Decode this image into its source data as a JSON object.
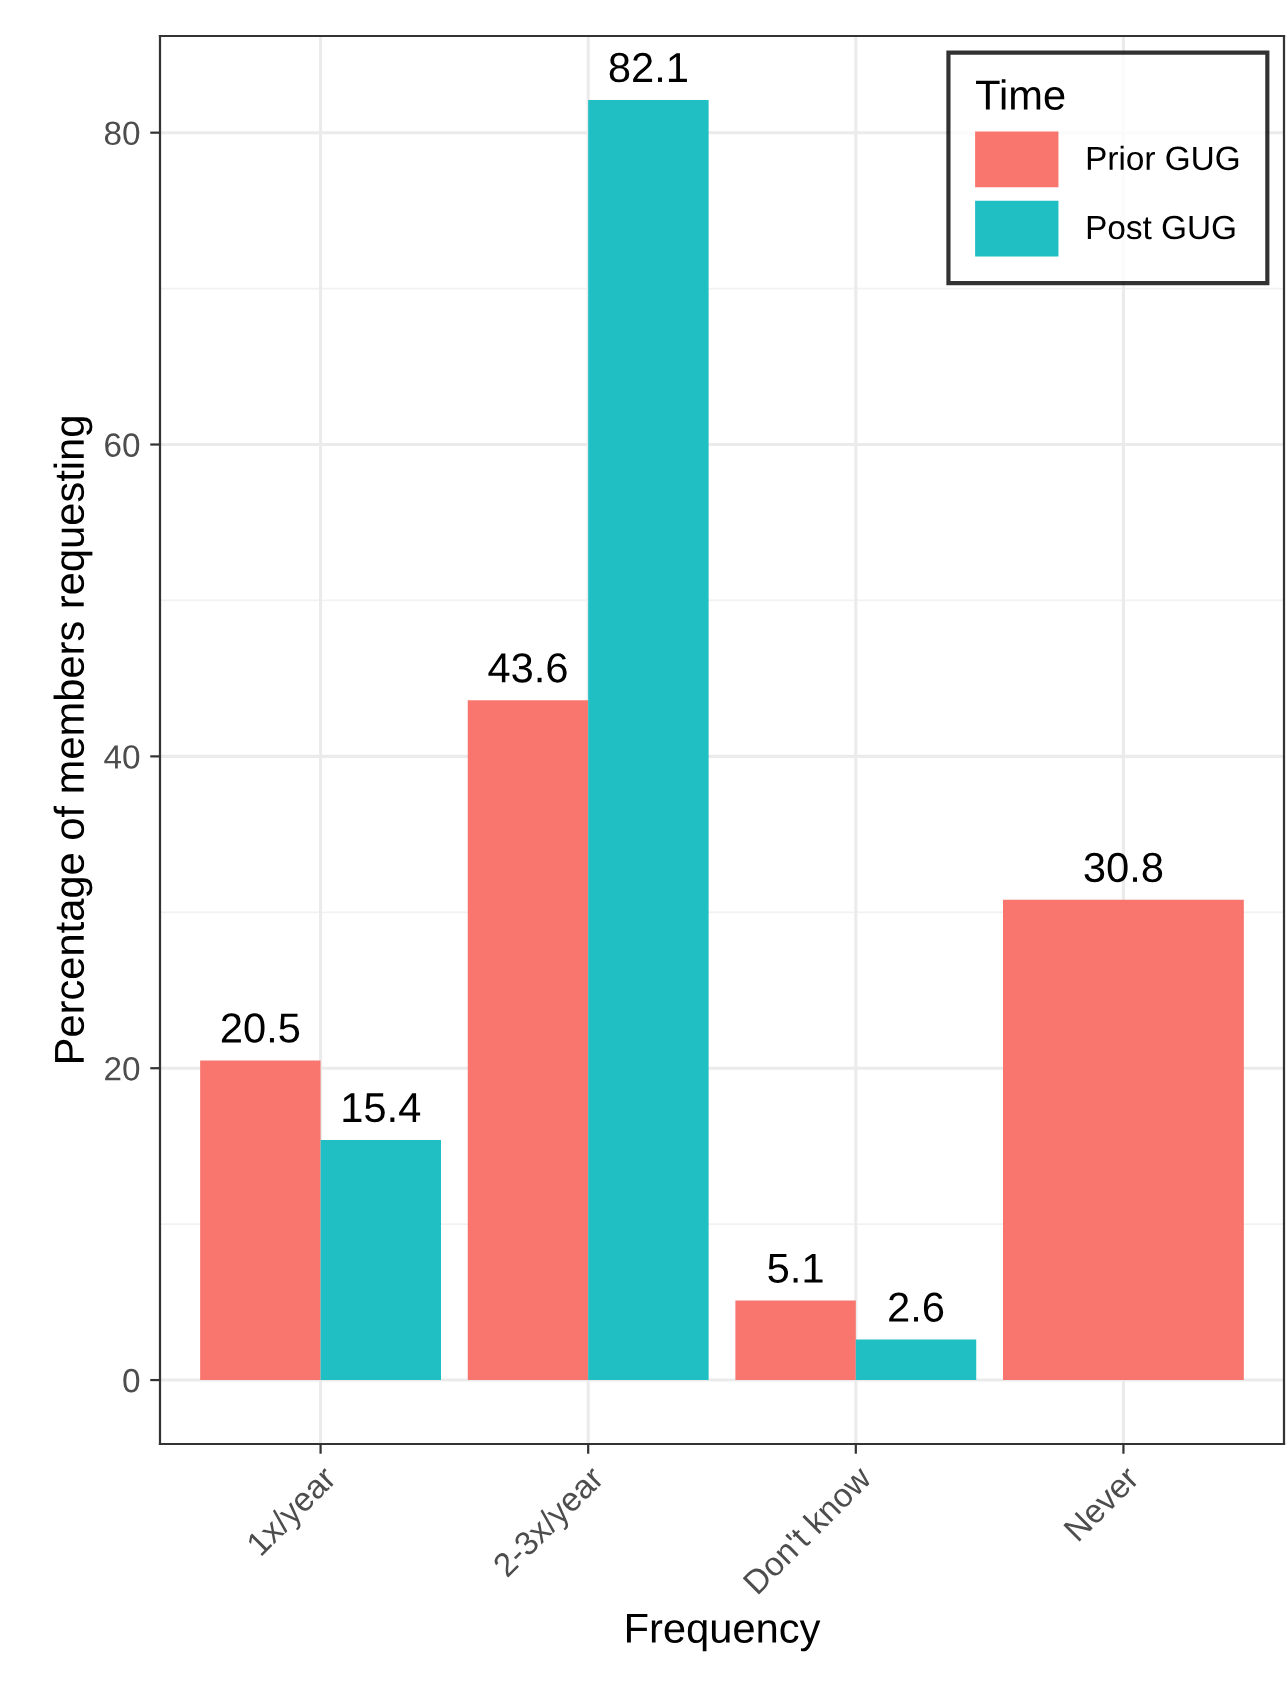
{
  "chart_data": {
    "type": "bar",
    "xlabel": "Frequency",
    "ylabel": "Percentage of members requesting",
    "legend_title": "Time",
    "categories": [
      "1x/year",
      "2-3x/year",
      "Don't know",
      "Never"
    ],
    "series": [
      {
        "name": "Prior GUG",
        "color": "#f8766d",
        "values": [
          20.5,
          43.6,
          5.1,
          30.8
        ]
      },
      {
        "name": "Post GUG",
        "color": "#1fbfc4",
        "values": [
          15.4,
          82.1,
          2.6,
          null
        ]
      }
    ],
    "data_labels": true,
    "ylim": [
      -4.1,
      86.2
    ],
    "yticks": [
      0,
      20,
      40,
      60,
      80
    ],
    "grid": true,
    "legend": "top right"
  }
}
